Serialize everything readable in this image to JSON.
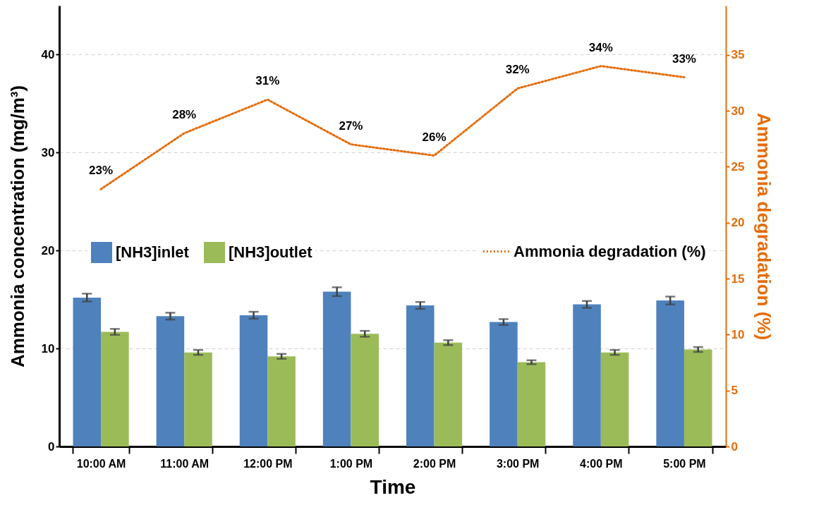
{
  "chart_data": {
    "type": "bar",
    "xlabel": "Time",
    "ylabel": "Ammonia concentration (mg/m³)",
    "y2label": "Ammonia degradation (%)",
    "categories": [
      "10:00 AM",
      "11:00 AM",
      "12:00 PM",
      "1:00 PM",
      "2:00 PM",
      "3:00 PM",
      "4:00 PM",
      "5:00 PM"
    ],
    "series": [
      {
        "name": "[NH3]inlet",
        "color": "#4f81bd",
        "values": [
          15.2,
          13.3,
          13.4,
          15.8,
          14.4,
          12.7,
          14.5,
          14.9
        ],
        "errors": [
          0.4,
          0.35,
          0.35,
          0.45,
          0.35,
          0.3,
          0.35,
          0.4
        ]
      },
      {
        "name": "[NH3]outlet",
        "color": "#9bbb59",
        "values": [
          11.7,
          9.6,
          9.2,
          11.5,
          10.6,
          8.6,
          9.6,
          9.9
        ],
        "errors": [
          0.3,
          0.25,
          0.25,
          0.3,
          0.25,
          0.2,
          0.25,
          0.25
        ]
      },
      {
        "name": "Ammonia degradation (%)",
        "type": "line",
        "axis": "y2",
        "color": "#e46c0a",
        "line_style": "dotted",
        "values": [
          23,
          28,
          31,
          27,
          26,
          32,
          34,
          33
        ],
        "value_labels": [
          "23%",
          "28%",
          "31%",
          "27%",
          "26%",
          "32%",
          "34%",
          "33%"
        ]
      }
    ],
    "ylim": [
      0,
      45
    ],
    "yticks": [
      0,
      10,
      20,
      30,
      40
    ],
    "y2lim": [
      0,
      39.4
    ],
    "y2ticks": [
      0,
      5,
      10,
      15,
      20,
      25,
      30,
      35
    ],
    "grid": "y",
    "legend": "center"
  }
}
